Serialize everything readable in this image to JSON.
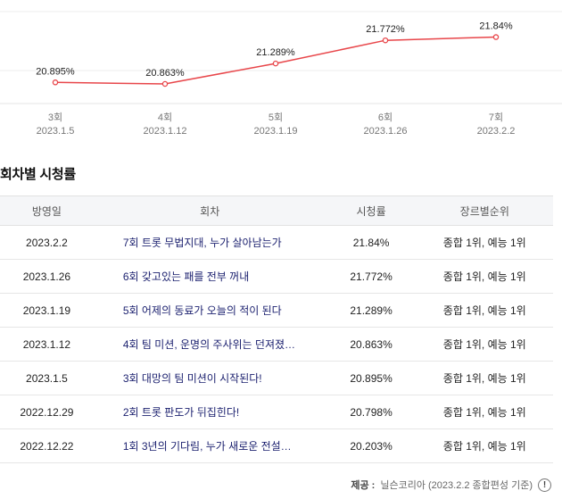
{
  "chart_data": {
    "type": "line",
    "x": [
      "3회\n2023.1.5",
      "4회\n2023.1.12",
      "5회\n2023.1.19",
      "6회\n2023.1.26",
      "7회\n2023.2.2"
    ],
    "episodes": [
      "3회",
      "4회",
      "5회",
      "6회",
      "7회"
    ],
    "dates": [
      "2023.1.5",
      "2023.1.12",
      "2023.1.19",
      "2023.1.26",
      "2023.2.2"
    ],
    "values": [
      20.895,
      20.863,
      21.289,
      21.772,
      21.84
    ],
    "value_labels": [
      "20.895%",
      "20.863%",
      "21.289%",
      "21.772%",
      "21.84%"
    ],
    "ylim": [
      20.5,
      22.0
    ],
    "grid": true,
    "line_color": "#e8464a"
  },
  "section": {
    "title": "회차별 시청률"
  },
  "table": {
    "headers": {
      "date": "방영일",
      "title": "회차",
      "rating": "시청률",
      "rank": "장르별순위"
    },
    "rows": [
      {
        "date": "2023.2.2",
        "title": "7회 트롯 무법지대, 누가 살아남는가",
        "rating": "21.84%",
        "rank": "종합 1위, 예능 1위"
      },
      {
        "date": "2023.1.26",
        "title": "6회 갖고있는 패를 전부 꺼내",
        "rating": "21.772%",
        "rank": "종합 1위, 예능 1위"
      },
      {
        "date": "2023.1.19",
        "title": "5회 어제의 동료가 오늘의 적이 된다",
        "rating": "21.289%",
        "rank": "종합 1위, 예능 1위"
      },
      {
        "date": "2023.1.12",
        "title": "4회 팀 미션, 운명의 주사위는 던져졌…",
        "rating": "20.863%",
        "rank": "종합 1위, 예능 1위"
      },
      {
        "date": "2023.1.5",
        "title": "3회 대망의 팀 미션이 시작된다!",
        "rating": "20.895%",
        "rank": "종합 1위, 예능 1위"
      },
      {
        "date": "2022.12.29",
        "title": "2회 트롯 판도가 뒤집힌다!",
        "rating": "20.798%",
        "rank": "종합 1위, 예능 1위"
      },
      {
        "date": "2022.12.22",
        "title": "1회 3년의 기다림, 누가 새로운 전설…",
        "rating": "20.203%",
        "rank": "종합 1위, 예능 1위"
      }
    ]
  },
  "footer": {
    "label": "제공 :",
    "source": "닐슨코리아 (2023.2.2 종합편성 기준)",
    "info_icon": "info-icon",
    "info_glyph": "!"
  }
}
